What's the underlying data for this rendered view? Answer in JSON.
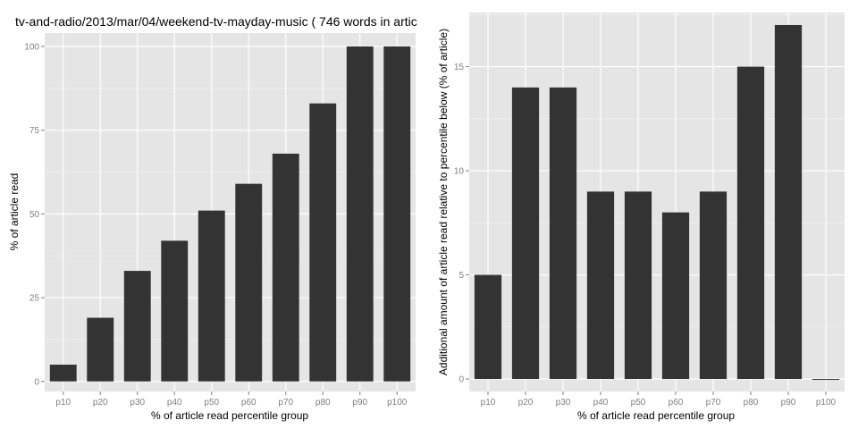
{
  "colors": {
    "panel_bg": "#e5e5e5",
    "grid_major": "#ffffff",
    "grid_minor": "#f2f2f2",
    "bar": "#333333",
    "tick_text": "#7f7f7f"
  },
  "chart_data": [
    {
      "type": "bar",
      "title": "tv-and-radio/2013/mar/04/weekend-tv-mayday-music ( 746 words in artic",
      "xlabel": "% of article read percentile group",
      "ylabel": "% of article read",
      "categories": [
        "p10",
        "p20",
        "p30",
        "p40",
        "p50",
        "p60",
        "p70",
        "p80",
        "p90",
        "p100"
      ],
      "values": [
        5,
        19,
        33,
        42,
        51,
        59,
        68,
        83,
        100,
        100
      ],
      "ylim": [
        -3,
        104
      ],
      "yticks": [
        0,
        25,
        50,
        75,
        100
      ],
      "grid": true
    },
    {
      "type": "bar",
      "title": "",
      "xlabel": "% of article read percentile group",
      "ylabel": "Additional amount of article read relative to percentile below (% of article)",
      "categories": [
        "p10",
        "p20",
        "p30",
        "p40",
        "p50",
        "p60",
        "p70",
        "p80",
        "p90",
        "p100"
      ],
      "values": [
        5,
        14,
        14,
        9,
        9,
        8,
        9,
        15,
        17,
        0
      ],
      "ylim": [
        -0.6,
        17.6
      ],
      "yticks": [
        0,
        5,
        10,
        15
      ],
      "grid": true
    }
  ]
}
